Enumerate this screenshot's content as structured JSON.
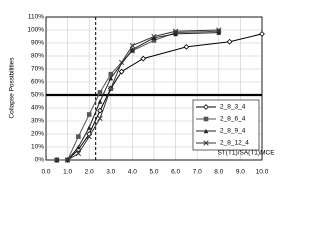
{
  "chart_data": {
    "type": "line",
    "y_label": "Collapse Possibilities",
    "x_label": "ST(T1)/SA(T1)MCE",
    "xlim": [
      0,
      10
    ],
    "ylim": [
      0,
      110
    ],
    "xticks": [
      {
        "value": 0,
        "label": "0.0"
      },
      {
        "value": 1,
        "label": "1.0"
      },
      {
        "value": 2,
        "label": "2.0"
      },
      {
        "value": 3,
        "label": "3.0"
      },
      {
        "value": 4,
        "label": "4.0"
      },
      {
        "value": 5,
        "label": "5.0"
      },
      {
        "value": 6,
        "label": "6.0"
      },
      {
        "value": 7,
        "label": "7.0"
      },
      {
        "value": 8,
        "label": "8.0"
      },
      {
        "value": 9,
        "label": "9.0"
      },
      {
        "value": 10,
        "label": "10.0"
      }
    ],
    "yticks": [
      {
        "value": 0,
        "label": "0%"
      },
      {
        "value": 10,
        "label": "10%"
      },
      {
        "value": 20,
        "label": "20%"
      },
      {
        "value": 30,
        "label": "30%"
      },
      {
        "value": 40,
        "label": "40%"
      },
      {
        "value": 50,
        "label": "50%"
      },
      {
        "value": 60,
        "label": "60%"
      },
      {
        "value": 70,
        "label": "70%"
      },
      {
        "value": 80,
        "label": "80%"
      },
      {
        "value": 90,
        "label": "90%"
      },
      {
        "value": 100,
        "label": "100%"
      },
      {
        "value": 110,
        "label": "110%"
      }
    ],
    "grid": true,
    "vline": 2.3,
    "hline": 50,
    "legend": "lower right",
    "series": [
      {
        "name": "2_8_3_4",
        "color": "#000000",
        "marker": "diamond",
        "x": [
          0.5,
          1,
          1.5,
          2,
          2.5,
          3,
          3.5,
          4.5,
          6.5,
          8.5,
          10
        ],
        "values": [
          0,
          0,
          8,
          20,
          38,
          55,
          68,
          78,
          87,
          91,
          97
        ]
      },
      {
        "name": "2_8_6_4",
        "color": "#555555",
        "marker": "square",
        "x": [
          0.5,
          1,
          1.5,
          2,
          2.5,
          3,
          4,
          5,
          6,
          8
        ],
        "values": [
          0,
          0,
          18,
          35,
          52,
          66,
          84,
          92,
          98,
          99
        ]
      },
      {
        "name": "2_8_9_4",
        "color": "#222222",
        "marker": "triangle",
        "x": [
          0.5,
          1,
          1.5,
          2,
          2.5,
          3,
          4,
          5,
          6,
          8
        ],
        "values": [
          0,
          0,
          10,
          25,
          45,
          63,
          85,
          94,
          97,
          98
        ]
      },
      {
        "name": "2_8_12_4",
        "color": "#333333",
        "marker": "cross",
        "x": [
          0.5,
          1,
          1.5,
          2,
          2.5,
          3,
          3.5,
          4,
          5,
          6,
          8
        ],
        "values": [
          0,
          0,
          5,
          18,
          32,
          55,
          75,
          88,
          95,
          99,
          100
        ]
      }
    ]
  }
}
